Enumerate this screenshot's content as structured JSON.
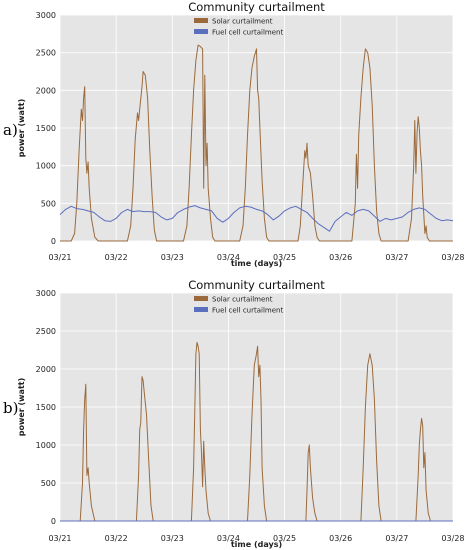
{
  "chart_data": [
    {
      "type": "line",
      "panel_tag": "a)",
      "title": "Community curtailment",
      "xlabel": "time (days)",
      "ylabel": "power (watt)",
      "xticks": [
        "03/21",
        "03/22",
        "03/23",
        "03/24",
        "03/25",
        "03/26",
        "03/27",
        "03/28"
      ],
      "xlim": [
        0,
        7
      ],
      "ylim": [
        0,
        3000
      ],
      "yticks": [
        0,
        500,
        1000,
        1500,
        2000,
        2500,
        3000
      ],
      "legend_position": "top-center",
      "series": [
        {
          "name": "Solar curtailment",
          "color": "#9b6a3c",
          "points": [
            [
              0,
              0
            ],
            [
              0.2,
              0
            ],
            [
              0.26,
              100
            ],
            [
              0.3,
              500
            ],
            [
              0.34,
              1200
            ],
            [
              0.38,
              1750
            ],
            [
              0.4,
              1600
            ],
            [
              0.42,
              1900
            ],
            [
              0.44,
              2050
            ],
            [
              0.46,
              1100
            ],
            [
              0.48,
              900
            ],
            [
              0.5,
              1050
            ],
            [
              0.52,
              700
            ],
            [
              0.56,
              300
            ],
            [
              0.62,
              50
            ],
            [
              0.68,
              0
            ],
            [
              1.2,
              0
            ],
            [
              1.26,
              200
            ],
            [
              1.3,
              700
            ],
            [
              1.34,
              1350
            ],
            [
              1.38,
              1700
            ],
            [
              1.4,
              1600
            ],
            [
              1.42,
              1750
            ],
            [
              1.46,
              2050
            ],
            [
              1.48,
              2250
            ],
            [
              1.52,
              2200
            ],
            [
              1.56,
              1900
            ],
            [
              1.6,
              1200
            ],
            [
              1.64,
              600
            ],
            [
              1.68,
              150
            ],
            [
              1.72,
              0
            ],
            [
              2.2,
              0
            ],
            [
              2.26,
              200
            ],
            [
              2.3,
              700
            ],
            [
              2.34,
              1400
            ],
            [
              2.38,
              2000
            ],
            [
              2.42,
              2400
            ],
            [
              2.46,
              2600
            ],
            [
              2.5,
              2580
            ],
            [
              2.54,
              2550
            ],
            [
              2.56,
              700
            ],
            [
              2.58,
              2200
            ],
            [
              2.6,
              1000
            ],
            [
              2.62,
              1300
            ],
            [
              2.64,
              700
            ],
            [
              2.68,
              300
            ],
            [
              2.72,
              50
            ],
            [
              2.76,
              0
            ],
            [
              3.2,
              0
            ],
            [
              3.26,
              200
            ],
            [
              3.3,
              700
            ],
            [
              3.34,
              1400
            ],
            [
              3.38,
              2000
            ],
            [
              3.42,
              2300
            ],
            [
              3.46,
              2450
            ],
            [
              3.5,
              2550
            ],
            [
              3.52,
              2000
            ],
            [
              3.54,
              1900
            ],
            [
              3.56,
              1500
            ],
            [
              3.6,
              800
            ],
            [
              3.64,
              300
            ],
            [
              3.68,
              50
            ],
            [
              3.72,
              0
            ],
            [
              4.24,
              0
            ],
            [
              4.28,
              200
            ],
            [
              4.32,
              700
            ],
            [
              4.36,
              1200
            ],
            [
              4.38,
              1100
            ],
            [
              4.4,
              1300
            ],
            [
              4.42,
              1000
            ],
            [
              4.46,
              900
            ],
            [
              4.5,
              600
            ],
            [
              4.54,
              200
            ],
            [
              4.58,
              50
            ],
            [
              4.62,
              0
            ],
            [
              5.2,
              0
            ],
            [
              5.26,
              500
            ],
            [
              5.28,
              1150
            ],
            [
              5.3,
              700
            ],
            [
              5.32,
              1400
            ],
            [
              5.36,
              1900
            ],
            [
              5.4,
              2300
            ],
            [
              5.44,
              2550
            ],
            [
              5.48,
              2500
            ],
            [
              5.52,
              2300
            ],
            [
              5.56,
              1800
            ],
            [
              5.6,
              1000
            ],
            [
              5.64,
              400
            ],
            [
              5.68,
              100
            ],
            [
              5.72,
              0
            ],
            [
              6.2,
              0
            ],
            [
              6.26,
              300
            ],
            [
              6.3,
              1000
            ],
            [
              6.32,
              1600
            ],
            [
              6.34,
              900
            ],
            [
              6.36,
              1450
            ],
            [
              6.38,
              1650
            ],
            [
              6.4,
              1500
            ],
            [
              6.42,
              1200
            ],
            [
              6.44,
              1000
            ],
            [
              6.46,
              600
            ],
            [
              6.5,
              100
            ],
            [
              6.52,
              200
            ],
            [
              6.54,
              50
            ],
            [
              6.58,
              0
            ],
            [
              7,
              0
            ]
          ]
        },
        {
          "name": "Fuel cell curtailment",
          "color": "#5b6fbf",
          "points": [
            [
              0,
              350
            ],
            [
              0.1,
              420
            ],
            [
              0.2,
              460
            ],
            [
              0.3,
              430
            ],
            [
              0.4,
              420
            ],
            [
              0.5,
              400
            ],
            [
              0.6,
              380
            ],
            [
              0.7,
              320
            ],
            [
              0.8,
              270
            ],
            [
              0.9,
              260
            ],
            [
              1.0,
              300
            ],
            [
              1.1,
              380
            ],
            [
              1.2,
              420
            ],
            [
              1.3,
              390
            ],
            [
              1.4,
              400
            ],
            [
              1.5,
              390
            ],
            [
              1.6,
              390
            ],
            [
              1.7,
              380
            ],
            [
              1.8,
              320
            ],
            [
              1.9,
              280
            ],
            [
              2.0,
              300
            ],
            [
              2.1,
              380
            ],
            [
              2.2,
              420
            ],
            [
              2.3,
              450
            ],
            [
              2.4,
              470
            ],
            [
              2.5,
              440
            ],
            [
              2.6,
              420
            ],
            [
              2.7,
              400
            ],
            [
              2.8,
              300
            ],
            [
              2.9,
              250
            ],
            [
              3.0,
              300
            ],
            [
              3.1,
              380
            ],
            [
              3.2,
              440
            ],
            [
              3.3,
              460
            ],
            [
              3.4,
              450
            ],
            [
              3.5,
              420
            ],
            [
              3.6,
              400
            ],
            [
              3.7,
              350
            ],
            [
              3.8,
              280
            ],
            [
              3.9,
              330
            ],
            [
              4.0,
              400
            ],
            [
              4.1,
              440
            ],
            [
              4.2,
              460
            ],
            [
              4.3,
              420
            ],
            [
              4.4,
              380
            ],
            [
              4.5,
              300
            ],
            [
              4.6,
              230
            ],
            [
              4.7,
              180
            ],
            [
              4.8,
              130
            ],
            [
              4.9,
              260
            ],
            [
              5.0,
              320
            ],
            [
              5.1,
              380
            ],
            [
              5.2,
              340
            ],
            [
              5.3,
              400
            ],
            [
              5.4,
              420
            ],
            [
              5.5,
              400
            ],
            [
              5.6,
              330
            ],
            [
              5.7,
              260
            ],
            [
              5.8,
              300
            ],
            [
              5.9,
              280
            ],
            [
              6.0,
              300
            ],
            [
              6.1,
              320
            ],
            [
              6.2,
              380
            ],
            [
              6.3,
              420
            ],
            [
              6.4,
              440
            ],
            [
              6.5,
              420
            ],
            [
              6.6,
              360
            ],
            [
              6.7,
              300
            ],
            [
              6.8,
              270
            ],
            [
              6.9,
              280
            ],
            [
              7.0,
              270
            ]
          ]
        }
      ]
    },
    {
      "type": "line",
      "panel_tag": "b)",
      "title": "Community curtailment",
      "xlabel": "time (days)",
      "ylabel": "power (watt)",
      "xticks": [
        "03/21",
        "03/22",
        "03/23",
        "03/24",
        "03/25",
        "03/26",
        "03/27",
        "03/28"
      ],
      "xlim": [
        0,
        7
      ],
      "ylim": [
        0,
        3000
      ],
      "yticks": [
        0,
        500,
        1000,
        1500,
        2000,
        2500,
        3000
      ],
      "legend_position": "top-center",
      "series": [
        {
          "name": "Solar curtailment",
          "color": "#9b6a3c",
          "points": [
            [
              0,
              0
            ],
            [
              0.36,
              0
            ],
            [
              0.4,
              500
            ],
            [
              0.42,
              1200
            ],
            [
              0.44,
              1600
            ],
            [
              0.46,
              1800
            ],
            [
              0.48,
              600
            ],
            [
              0.5,
              700
            ],
            [
              0.52,
              500
            ],
            [
              0.56,
              200
            ],
            [
              0.62,
              0
            ],
            [
              1.36,
              0
            ],
            [
              1.4,
              600
            ],
            [
              1.42,
              1200
            ],
            [
              1.44,
              1300
            ],
            [
              1.46,
              1900
            ],
            [
              1.48,
              1850
            ],
            [
              1.5,
              1700
            ],
            [
              1.54,
              1400
            ],
            [
              1.58,
              800
            ],
            [
              1.62,
              200
            ],
            [
              1.66,
              0
            ],
            [
              2.34,
              0
            ],
            [
              2.38,
              700
            ],
            [
              2.4,
              1400
            ],
            [
              2.42,
              2200
            ],
            [
              2.44,
              2350
            ],
            [
              2.46,
              2300
            ],
            [
              2.48,
              2200
            ],
            [
              2.5,
              1200
            ],
            [
              2.52,
              900
            ],
            [
              2.54,
              450
            ],
            [
              2.56,
              1050
            ],
            [
              2.58,
              700
            ],
            [
              2.6,
              400
            ],
            [
              2.64,
              100
            ],
            [
              2.68,
              0
            ],
            [
              3.34,
              0
            ],
            [
              3.38,
              600
            ],
            [
              3.42,
              1400
            ],
            [
              3.46,
              2050
            ],
            [
              3.5,
              2200
            ],
            [
              3.52,
              2300
            ],
            [
              3.54,
              1900
            ],
            [
              3.56,
              2050
            ],
            [
              3.58,
              1600
            ],
            [
              3.6,
              700
            ],
            [
              3.64,
              200
            ],
            [
              3.68,
              0
            ],
            [
              4.38,
              0
            ],
            [
              4.4,
              400
            ],
            [
              4.42,
              900
            ],
            [
              4.44,
              1000
            ],
            [
              4.46,
              700
            ],
            [
              4.48,
              500
            ],
            [
              4.5,
              300
            ],
            [
              4.54,
              100
            ],
            [
              4.58,
              0
            ],
            [
              5.36,
              0
            ],
            [
              5.4,
              700
            ],
            [
              5.44,
              1500
            ],
            [
              5.48,
              2050
            ],
            [
              5.52,
              2200
            ],
            [
              5.56,
              2050
            ],
            [
              5.6,
              1600
            ],
            [
              5.64,
              800
            ],
            [
              5.68,
              200
            ],
            [
              5.72,
              0
            ],
            [
              6.34,
              0
            ],
            [
              6.38,
              600
            ],
            [
              6.4,
              1000
            ],
            [
              6.42,
              1200
            ],
            [
              6.44,
              1350
            ],
            [
              6.46,
              1250
            ],
            [
              6.48,
              700
            ],
            [
              6.5,
              900
            ],
            [
              6.52,
              400
            ],
            [
              6.56,
              100
            ],
            [
              6.6,
              0
            ],
            [
              7,
              0
            ]
          ]
        },
        {
          "name": "Fuel cell curtailment",
          "color": "#5b6fbf",
          "points": [
            [
              0,
              0
            ],
            [
              7,
              0
            ]
          ]
        }
      ]
    }
  ]
}
